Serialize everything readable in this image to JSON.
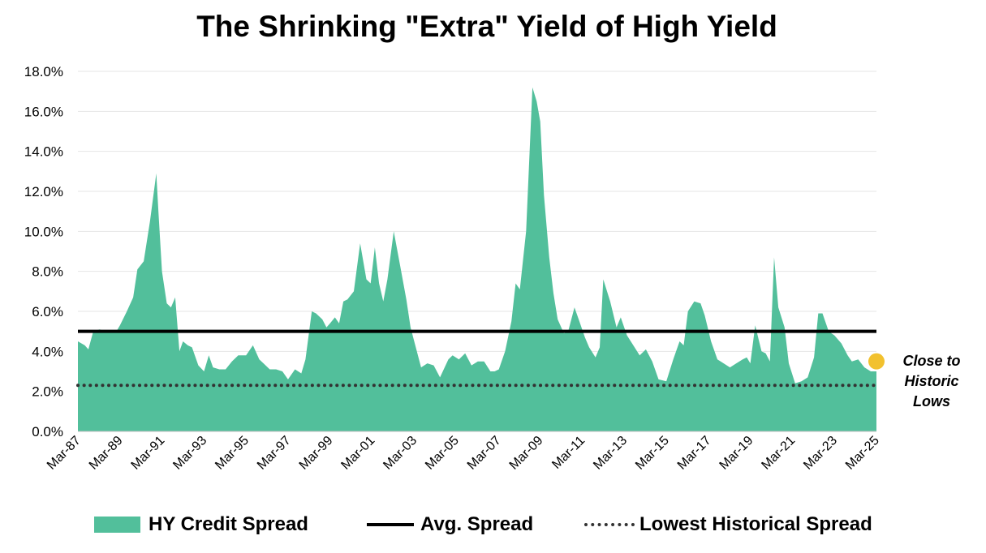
{
  "chart_data": {
    "type": "area",
    "title": "The Shrinking \"Extra\" Yield of High Yield",
    "xlabel": "",
    "ylabel": "",
    "ylim": [
      0,
      18
    ],
    "y_ticks": [
      "0.0%",
      "2.0%",
      "4.0%",
      "6.0%",
      "8.0%",
      "10.0%",
      "12.0%",
      "14.0%",
      "16.0%",
      "18.0%"
    ],
    "x_tick_labels": [
      "Mar-87",
      "Mar-89",
      "Mar-91",
      "Mar-93",
      "Mar-95",
      "Mar-97",
      "Mar-99",
      "Mar-01",
      "Mar-03",
      "Mar-05",
      "Mar-07",
      "Mar-09",
      "Mar-11",
      "Mar-13",
      "Mar-15",
      "Mar-17",
      "Mar-19",
      "Mar-21",
      "Mar-23",
      "Mar-25"
    ],
    "x_range": [
      1987.17,
      2025.17
    ],
    "grid": "horizontal",
    "series": [
      {
        "name": "HY Credit Spread",
        "color": "#52BF9B",
        "kind": "area",
        "x": [
          1987.17,
          1987.5,
          1987.67,
          1987.9,
          1988.2,
          1988.5,
          1988.8,
          1989.0,
          1989.17,
          1989.5,
          1989.8,
          1990.0,
          1990.3,
          1990.6,
          1990.9,
          1991.0,
          1991.17,
          1991.4,
          1991.6,
          1991.8,
          1992.0,
          1992.17,
          1992.4,
          1992.6,
          1992.9,
          1993.17,
          1993.4,
          1993.6,
          1993.9,
          1994.2,
          1994.5,
          1994.8,
          1995.17,
          1995.5,
          1995.8,
          1996.0,
          1996.3,
          1996.6,
          1996.9,
          1997.17,
          1997.5,
          1997.8,
          1998.0,
          1998.3,
          1998.5,
          1998.8,
          1999.0,
          1999.17,
          1999.4,
          1999.6,
          1999.8,
          2000.0,
          2000.3,
          2000.6,
          2000.9,
          2001.1,
          2001.3,
          2001.5,
          2001.7,
          2001.9,
          2002.2,
          2002.5,
          2002.8,
          2003.0,
          2003.2,
          2003.5,
          2003.8,
          2004.1,
          2004.4,
          2004.8,
          2005.0,
          2005.3,
          2005.6,
          2005.9,
          2006.2,
          2006.5,
          2006.8,
          2007.0,
          2007.2,
          2007.5,
          2007.8,
          2008.0,
          2008.2,
          2008.5,
          2008.8,
          2009.0,
          2009.17,
          2009.35,
          2009.6,
          2009.8,
          2010.0,
          2010.3,
          2010.5,
          2010.8,
          2011.0,
          2011.3,
          2011.5,
          2011.8,
          2012.0,
          2012.17,
          2012.5,
          2012.8,
          2013.0,
          2013.3,
          2013.6,
          2013.9,
          2014.2,
          2014.5,
          2014.8,
          2015.17,
          2015.5,
          2015.8,
          2016.0,
          2016.2,
          2016.5,
          2016.8,
          2017.0,
          2017.3,
          2017.6,
          2017.9,
          2018.2,
          2018.5,
          2018.8,
          2019.0,
          2019.17,
          2019.4,
          2019.7,
          2019.9,
          2020.1,
          2020.3,
          2020.5,
          2020.8,
          2021.0,
          2021.3,
          2021.6,
          2021.9,
          2022.2,
          2022.4,
          2022.6,
          2022.9,
          2023.17,
          2023.5,
          2023.8,
          2024.0,
          2024.3,
          2024.6,
          2024.9,
          2025.17
        ],
        "values": [
          4.5,
          4.3,
          4.1,
          5.0,
          5.1,
          5.0,
          5.0,
          5.0,
          5.3,
          6.0,
          6.7,
          8.1,
          8.5,
          10.5,
          12.9,
          11.0,
          8.0,
          6.4,
          6.2,
          6.7,
          4.0,
          4.5,
          4.3,
          4.2,
          3.3,
          3.0,
          3.8,
          3.2,
          3.1,
          3.1,
          3.5,
          3.8,
          3.8,
          4.3,
          3.6,
          3.4,
          3.1,
          3.1,
          3.0,
          2.6,
          3.1,
          2.9,
          3.6,
          6.0,
          5.9,
          5.6,
          5.2,
          5.4,
          5.7,
          5.4,
          6.5,
          6.6,
          7.0,
          9.4,
          7.6,
          7.4,
          9.2,
          7.4,
          6.5,
          7.6,
          10.0,
          8.3,
          6.6,
          5.2,
          4.4,
          3.2,
          3.4,
          3.3,
          2.7,
          3.6,
          3.8,
          3.6,
          3.9,
          3.3,
          3.5,
          3.5,
          3.0,
          3.0,
          3.1,
          4.0,
          5.5,
          7.4,
          7.1,
          10.0,
          17.2,
          16.5,
          15.5,
          11.8,
          8.7,
          6.9,
          5.6,
          4.9,
          5.0,
          6.2,
          5.6,
          4.7,
          4.2,
          3.7,
          4.2,
          7.6,
          6.5,
          5.2,
          5.7,
          4.8,
          4.3,
          3.8,
          4.1,
          3.5,
          2.6,
          2.5,
          3.6,
          4.5,
          4.3,
          6.0,
          6.5,
          6.4,
          5.8,
          4.5,
          3.6,
          3.4,
          3.2,
          3.4,
          3.6,
          3.7,
          3.4,
          5.3,
          4.0,
          3.9,
          3.5,
          8.7,
          6.2,
          5.2,
          3.4,
          2.4,
          2.5,
          2.7,
          3.7,
          5.9,
          5.9,
          5.0,
          4.8,
          4.4,
          3.8,
          3.5,
          3.6,
          3.2,
          3.0,
          3.0
        ]
      },
      {
        "name": "Avg. Spread",
        "color": "#000000",
        "kind": "line",
        "value": 5.0
      },
      {
        "name": "Lowest Historical Spread",
        "color": "#333333",
        "kind": "dotted",
        "value": 2.3
      }
    ],
    "annotations": [
      {
        "lines": [
          "Close to",
          "Historic",
          "Lows"
        ],
        "marker_x": 2025.17,
        "marker_y": 3.5,
        "marker_color": "#F2C12E"
      }
    ],
    "legend_position": "bottom"
  }
}
